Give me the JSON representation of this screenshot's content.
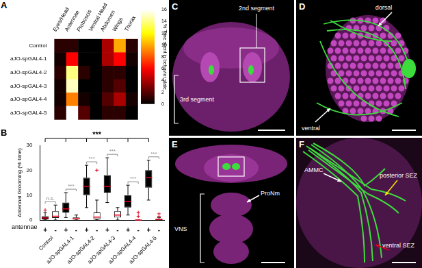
{
  "chart_data": [
    {
      "type": "heatmap",
      "panel": "A",
      "rows": [
        "Control",
        "aJO-spGAL4-1",
        "aJO-spGAL4-2",
        "aJO-spGAL4-3",
        "aJO-spGAL4-4",
        "aJO-spGAL4-5"
      ],
      "columns": [
        "Eyes/Head",
        "Antennae",
        "Proboscis",
        "Ventral Head",
        "Abdomen",
        "Wings",
        "Thorax"
      ],
      "values": [
        [
          1,
          1,
          0,
          0,
          4,
          10,
          1
        ],
        [
          0.5,
          6,
          0,
          0,
          4,
          6,
          0.5
        ],
        [
          1,
          14,
          1,
          0,
          1,
          1,
          0
        ],
        [
          0.5,
          15,
          0,
          0,
          1,
          2,
          0
        ],
        [
          0.5,
          9,
          0.5,
          0,
          2,
          4,
          0.5
        ],
        [
          1,
          16,
          2,
          0,
          1,
          1,
          0
        ]
      ],
      "colorbar": {
        "label": "% Time spent in behavior state",
        "range": [
          0,
          16
        ],
        "ticks": [
          0,
          2,
          4,
          6,
          8,
          10,
          12,
          14,
          16
        ]
      }
    },
    {
      "type": "box",
      "panel": "B",
      "y_label": "Antennal Grooming (% time)",
      "x_label": "antennae",
      "ylim": [
        0,
        30
      ],
      "yticks": [
        0,
        10,
        20,
        30
      ],
      "groups": [
        "Control",
        "aJO-spGAL4-1",
        "aJO-spGAL4-2",
        "aJO-spGAL4-3",
        "aJO-spGAL4-4",
        "aJO-spGAL4-5"
      ],
      "series": [
        {
          "name": "+",
          "color": "#000000",
          "stats": [
            {
              "min": 0,
              "q1": 0.3,
              "median": 0.8,
              "q3": 1.5,
              "max": 3,
              "outliers": [
                4
              ]
            },
            {
              "min": 1,
              "q1": 3,
              "median": 4.5,
              "q3": 7,
              "max": 11,
              "outliers": []
            },
            {
              "min": 5,
              "q1": 10,
              "median": 13.5,
              "q3": 17,
              "max": 22,
              "outliers": []
            },
            {
              "min": 7,
              "q1": 11,
              "median": 13.5,
              "q3": 18,
              "max": 25,
              "outliers": []
            },
            {
              "min": 2,
              "q1": 5,
              "median": 7.5,
              "q3": 10,
              "max": 14,
              "outliers": []
            },
            {
              "min": 8,
              "q1": 13,
              "median": 17,
              "q3": 20,
              "max": 24,
              "outliers": []
            }
          ]
        },
        {
          "name": "-",
          "color": "#ffffff",
          "stats": [
            {
              "min": 0,
              "q1": 0.8,
              "median": 1.5,
              "q3": 3.5,
              "max": 6,
              "outliers": []
            },
            {
              "min": 0,
              "q1": 0.2,
              "median": 0.5,
              "q3": 1,
              "max": 2,
              "outliers": []
            },
            {
              "min": 0,
              "q1": 0.3,
              "median": 1.2,
              "q3": 3,
              "max": 8,
              "outliers": [
                20
              ]
            },
            {
              "min": 0,
              "q1": 1,
              "median": 2,
              "q3": 3.5,
              "max": 5,
              "outliers": []
            },
            {
              "min": 0,
              "q1": 0,
              "median": 0,
              "q3": 0,
              "max": 0,
              "outliers": [
                1.5,
                3
              ]
            },
            {
              "min": 0,
              "q1": 0,
              "median": 0.2,
              "q3": 0.5,
              "max": 1,
              "outliers": [
                1.5,
                2.5
              ]
            }
          ]
        }
      ],
      "pair_tests": [
        {
          "group": "Control",
          "text": "n.s."
        },
        {
          "group": "aJO-spGAL4-1",
          "text": "***"
        },
        {
          "group": "aJO-spGAL4-2",
          "text": "***"
        },
        {
          "group": "aJO-spGAL4-3",
          "text": "***"
        },
        {
          "group": "aJO-spGAL4-4",
          "text": "***"
        },
        {
          "group": "aJO-spGAL4-5",
          "text": "***"
        }
      ],
      "group_test": {
        "text": "***",
        "groups": [
          "Control",
          "aJO-spGAL4-1",
          "aJO-spGAL4-2",
          "aJO-spGAL4-3",
          "aJO-spGAL4-4",
          "aJO-spGAL4-5"
        ]
      }
    }
  ],
  "images": [
    {
      "panel": "C",
      "labels": [
        "2nd segment",
        "3rd segment"
      ]
    },
    {
      "panel": "D",
      "labels": [
        "dorsal",
        "ventral"
      ]
    },
    {
      "panel": "E",
      "labels": [
        "ProNm",
        "VNS"
      ]
    },
    {
      "panel": "F",
      "labels": [
        "AMMC",
        "posterior SEZ",
        "ventral SEZ"
      ]
    }
  ]
}
